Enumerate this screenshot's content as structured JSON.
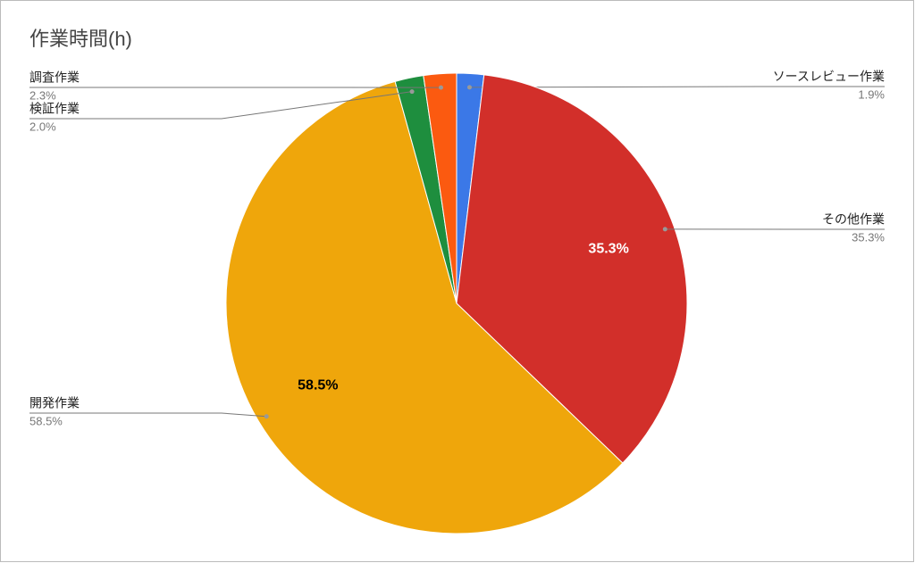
{
  "chart_data": {
    "type": "pie",
    "title": "作業時間(h)",
    "categories": [
      "ソースレビュー作業",
      "その他作業",
      "開発作業",
      "検証作業",
      "調査作業"
    ],
    "values": [
      1.9,
      35.3,
      58.5,
      2.0,
      2.3
    ],
    "value_labels": [
      "1.9%",
      "35.3%",
      "58.5%",
      "2.0%",
      "2.3%"
    ],
    "colors": [
      "#3b78e7",
      "#d22f2a",
      "#efa60b",
      "#1e8e3e",
      "#fb5a10"
    ]
  }
}
